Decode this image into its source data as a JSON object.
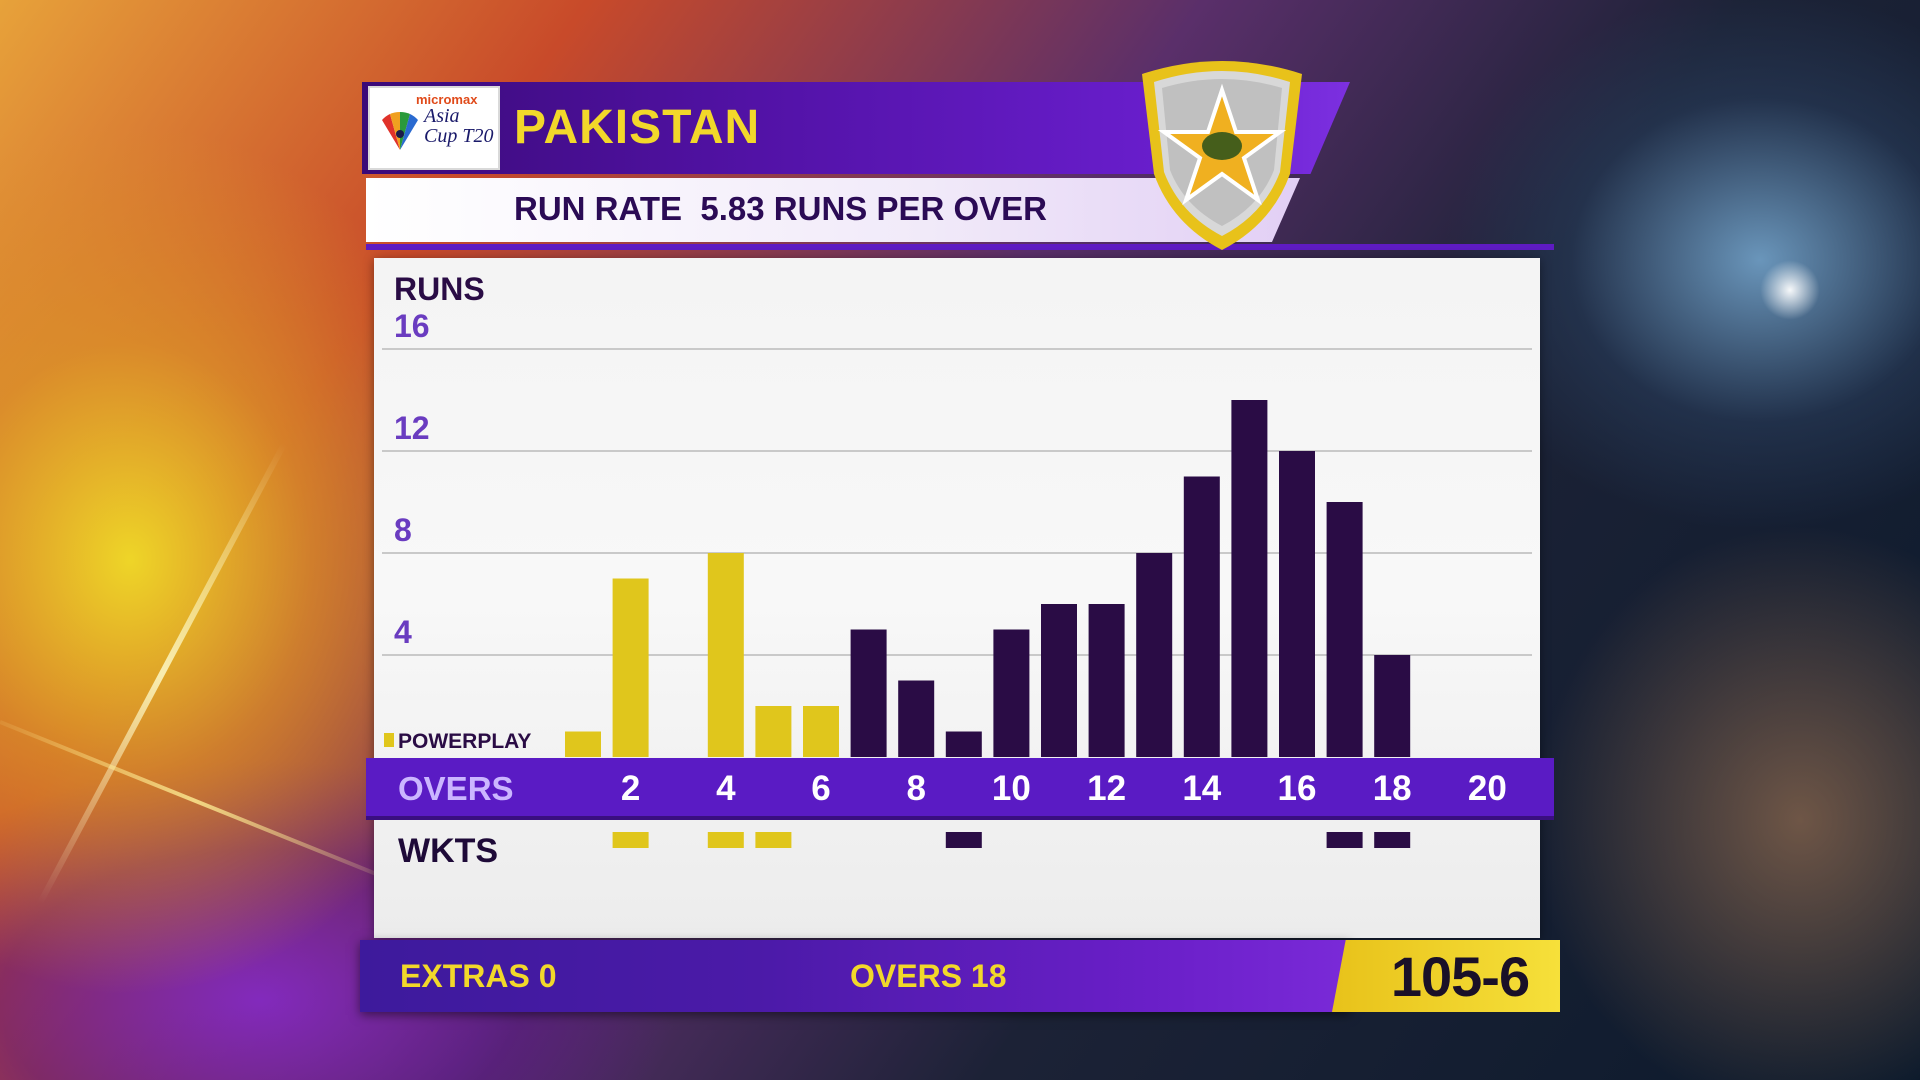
{
  "header": {
    "logo_sponsor": "micromax",
    "logo_title": "Asia Cup T20",
    "team": "PAKISTAN",
    "run_rate": "RUN RATE  5.83 RUNS PER OVER"
  },
  "colors": {
    "powerplay": "#e0c61c",
    "normal": "#2a0c45",
    "accent": "#5a1bc4",
    "label_purple": "#6a3cc0"
  },
  "chart_data": {
    "type": "bar",
    "ylabel": "RUNS",
    "xlabel": "OVERS",
    "ylim": [
      0,
      16
    ],
    "y_ticks": [
      "16",
      "12",
      "8",
      "4"
    ],
    "x_ticks": [
      "2",
      "4",
      "6",
      "8",
      "10",
      "12",
      "14",
      "16",
      "18",
      "20"
    ],
    "legend": "POWERPLAY",
    "powerplay_overs": 6,
    "overs": [
      1,
      2,
      3,
      4,
      5,
      6,
      7,
      8,
      9,
      10,
      11,
      12,
      13,
      14,
      15,
      16,
      17,
      18
    ],
    "runs": [
      1,
      7,
      0,
      8,
      2,
      2,
      5,
      3,
      1,
      5,
      6,
      6,
      8,
      11,
      14,
      12,
      10,
      4
    ],
    "wickets_label": "WKTS",
    "wicket_overs": [
      2,
      4,
      5,
      9,
      17,
      18
    ]
  },
  "footer": {
    "extras": "EXTRAS 0",
    "overs": "OVERS 18",
    "score": "105-6"
  }
}
